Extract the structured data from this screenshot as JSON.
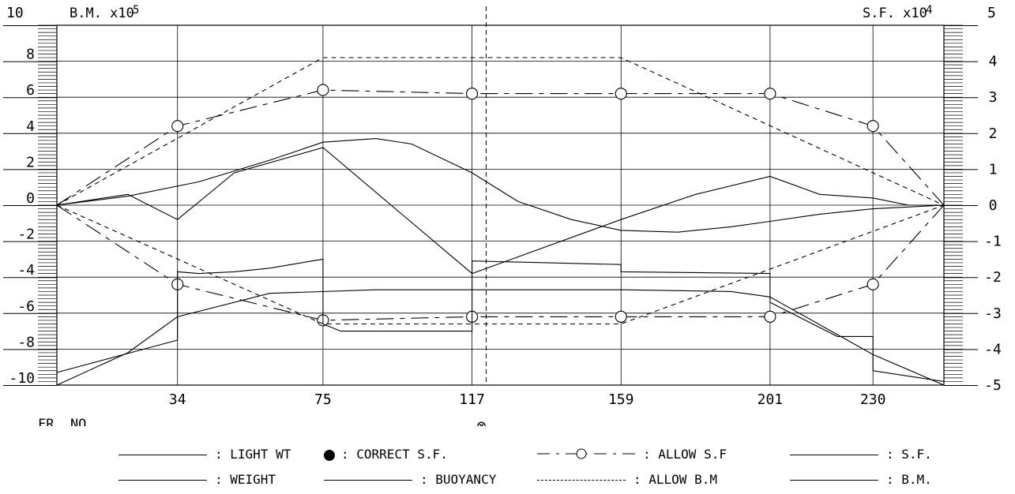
{
  "chart_data": {
    "type": "line",
    "left_axis": {
      "label": "B.M. x10",
      "exponent": "5",
      "ticks": [
        "10",
        "8",
        "6",
        "4",
        "2",
        "0",
        "-2",
        "-4",
        "-6",
        "-8",
        "-10"
      ],
      "range": [
        -10,
        10
      ]
    },
    "right_axis": {
      "label": "S.F. x10",
      "exponent": "4",
      "ticks": [
        "5",
        "4",
        "3",
        "2",
        "1",
        "0",
        "-1",
        "-2",
        "-3",
        "-4",
        "-5"
      ],
      "range": [
        -5,
        5
      ]
    },
    "x_axis": {
      "label": "FR. NO.",
      "range": [
        0,
        250
      ],
      "ticks": [
        "34",
        "75",
        "117",
        "159",
        "201",
        "230"
      ],
      "tick_values": [
        34,
        75,
        117,
        159,
        201,
        230
      ],
      "midship_frame": 121,
      "midship_symbol": "⊗"
    },
    "series": [
      {
        "key": "allow_sf_pos",
        "axis": "right",
        "style": "dashdot",
        "marker": "circle",
        "points": [
          [
            0,
            0
          ],
          [
            34,
            2.2
          ],
          [
            75,
            3.2
          ],
          [
            117,
            3.1
          ],
          [
            159,
            3.1
          ],
          [
            201,
            3.1
          ],
          [
            230,
            2.2
          ],
          [
            250,
            0
          ]
        ]
      },
      {
        "key": "allow_sf_neg",
        "axis": "right",
        "style": "dashdot",
        "marker": "circle",
        "points": [
          [
            0,
            0
          ],
          [
            34,
            -2.2
          ],
          [
            75,
            -3.2
          ],
          [
            117,
            -3.1
          ],
          [
            159,
            -3.1
          ],
          [
            201,
            -3.1
          ],
          [
            230,
            -2.2
          ],
          [
            250,
            0
          ]
        ]
      },
      {
        "key": "allow_bm_pos",
        "axis": "left",
        "style": "dashed",
        "marker": "none",
        "points": [
          [
            0,
            0
          ],
          [
            75,
            8.2
          ],
          [
            159,
            8.2
          ],
          [
            250,
            0
          ]
        ]
      },
      {
        "key": "allow_bm_neg",
        "axis": "left",
        "style": "dashed",
        "marker": "none",
        "points": [
          [
            0,
            0
          ],
          [
            75,
            -6.6
          ],
          [
            159,
            -6.6
          ],
          [
            250,
            0
          ]
        ]
      },
      {
        "key": "bm",
        "axis": "left",
        "style": "solid",
        "marker": "none",
        "points": [
          [
            0,
            0
          ],
          [
            20,
            0.5
          ],
          [
            40,
            1.3
          ],
          [
            60,
            2.5
          ],
          [
            75,
            3.5
          ],
          [
            90,
            3.7
          ],
          [
            100,
            3.4
          ],
          [
            117,
            1.8
          ],
          [
            130,
            0.2
          ],
          [
            145,
            -0.8
          ],
          [
            159,
            -1.4
          ],
          [
            175,
            -1.5
          ],
          [
            190,
            -1.2
          ],
          [
            201,
            -0.9
          ],
          [
            215,
            -0.5
          ],
          [
            230,
            -0.2
          ],
          [
            250,
            0
          ]
        ]
      },
      {
        "key": "sf",
        "axis": "right",
        "style": "solid",
        "marker": "none",
        "points": [
          [
            0,
            0
          ],
          [
            20,
            0.3
          ],
          [
            34,
            -0.4
          ],
          [
            50,
            0.9
          ],
          [
            75,
            1.6
          ],
          [
            117,
            -1.9
          ],
          [
            159,
            -0.4
          ],
          [
            180,
            0.3
          ],
          [
            201,
            0.8
          ],
          [
            215,
            0.3
          ],
          [
            230,
            0.2
          ],
          [
            240,
            0
          ],
          [
            250,
            0
          ]
        ]
      },
      {
        "key": "weight",
        "axis": "left",
        "style": "solid",
        "marker": "none",
        "points": [
          [
            0,
            -9.3
          ],
          [
            34,
            -7.5
          ],
          [
            34,
            -3.7
          ],
          [
            40,
            -3.8
          ],
          [
            50,
            -3.7
          ],
          [
            60,
            -3.5
          ],
          [
            75,
            -3.0
          ],
          [
            75,
            -6.6
          ],
          [
            80,
            -7.0
          ],
          [
            117,
            -7.0
          ],
          [
            117,
            -3.1
          ],
          [
            159,
            -3.3
          ],
          [
            159,
            -3.7
          ],
          [
            201,
            -3.8
          ],
          [
            201,
            -5.4
          ],
          [
            220,
            -7.3
          ],
          [
            230,
            -7.3
          ],
          [
            230,
            -9.2
          ],
          [
            250,
            -9.8
          ]
        ]
      },
      {
        "key": "buoyancy",
        "axis": "left",
        "style": "solid",
        "marker": "none",
        "points": [
          [
            0,
            -10
          ],
          [
            20,
            -8.2
          ],
          [
            34,
            -6.2
          ],
          [
            60,
            -4.9
          ],
          [
            90,
            -4.7
          ],
          [
            159,
            -4.7
          ],
          [
            190,
            -4.8
          ],
          [
            201,
            -5.1
          ],
          [
            230,
            -8.3
          ],
          [
            250,
            -10
          ]
        ]
      }
    ],
    "legend": [
      {
        "label": ": LIGHT WT",
        "style": "solid"
      },
      {
        "label": ": CORRECT S.F.",
        "style": "dot"
      },
      {
        "label": ": ALLOW S.F",
        "style": "dashcircle"
      },
      {
        "label": ": S.F.",
        "style": "solid"
      },
      {
        "label": ": WEIGHT",
        "style": "solid"
      },
      {
        "label": ": BUOYANCY",
        "style": "solid"
      },
      {
        "label": ": ALLOW B.M",
        "style": "dashed"
      },
      {
        "label": ": B.M.",
        "style": "solid"
      }
    ]
  }
}
